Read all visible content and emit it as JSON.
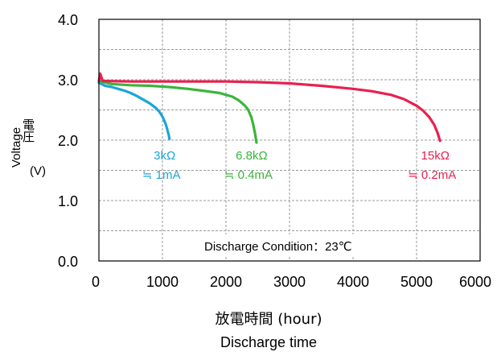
{
  "chart_data": {
    "type": "line",
    "xlabel": "放電時間 (hour)",
    "xlabel2": "Discharge time",
    "ylabel": "Voltage",
    "ylabel_jp": "電圧",
    "ylabel_unit": "(V)",
    "xlim": [
      0,
      6000
    ],
    "ylim": [
      0.0,
      4.0
    ],
    "xticks": [
      "0",
      "1000",
      "2000",
      "3000",
      "4000",
      "5000",
      "6000"
    ],
    "yticks": [
      "0.0",
      "1.0",
      "2.0",
      "3.0",
      "4.0"
    ],
    "grid": true,
    "annotation": "Discharge Condition：23℃",
    "series": [
      {
        "label_top": "3kΩ",
        "label_bottom": "≒ 1mA",
        "color": "#1ba6d6",
        "x": [
          0,
          100,
          200,
          300,
          400,
          500,
          600,
          700,
          800,
          900,
          950,
          1000,
          1030,
          1060,
          1080,
          1100,
          1110
        ],
        "y": [
          2.95,
          2.9,
          2.88,
          2.85,
          2.82,
          2.78,
          2.73,
          2.67,
          2.61,
          2.53,
          2.47,
          2.39,
          2.32,
          2.24,
          2.16,
          2.08,
          2.02
        ]
      },
      {
        "label_top": "6.8kΩ",
        "label_bottom": "≒ 0.4mA",
        "color": "#3ab53a",
        "x": [
          0,
          200,
          500,
          800,
          1100,
          1400,
          1700,
          1900,
          2100,
          2200,
          2300,
          2350,
          2400,
          2430,
          2460,
          2480
        ],
        "y": [
          2.98,
          2.93,
          2.91,
          2.9,
          2.88,
          2.85,
          2.81,
          2.78,
          2.72,
          2.66,
          2.57,
          2.5,
          2.38,
          2.25,
          2.1,
          1.96
        ]
      },
      {
        "label_top": "15kΩ",
        "label_bottom": "≒ 0.2mA",
        "color": "#e8214f",
        "x": [
          0,
          20,
          60,
          500,
          1000,
          1500,
          2000,
          2500,
          3000,
          3500,
          4000,
          4300,
          4600,
          4800,
          5000,
          5100,
          5200,
          5280,
          5330,
          5370
        ],
        "y": [
          2.98,
          3.1,
          2.98,
          2.97,
          2.97,
          2.97,
          2.97,
          2.96,
          2.94,
          2.9,
          2.85,
          2.81,
          2.75,
          2.68,
          2.57,
          2.49,
          2.38,
          2.25,
          2.12,
          1.99
        ]
      }
    ]
  }
}
